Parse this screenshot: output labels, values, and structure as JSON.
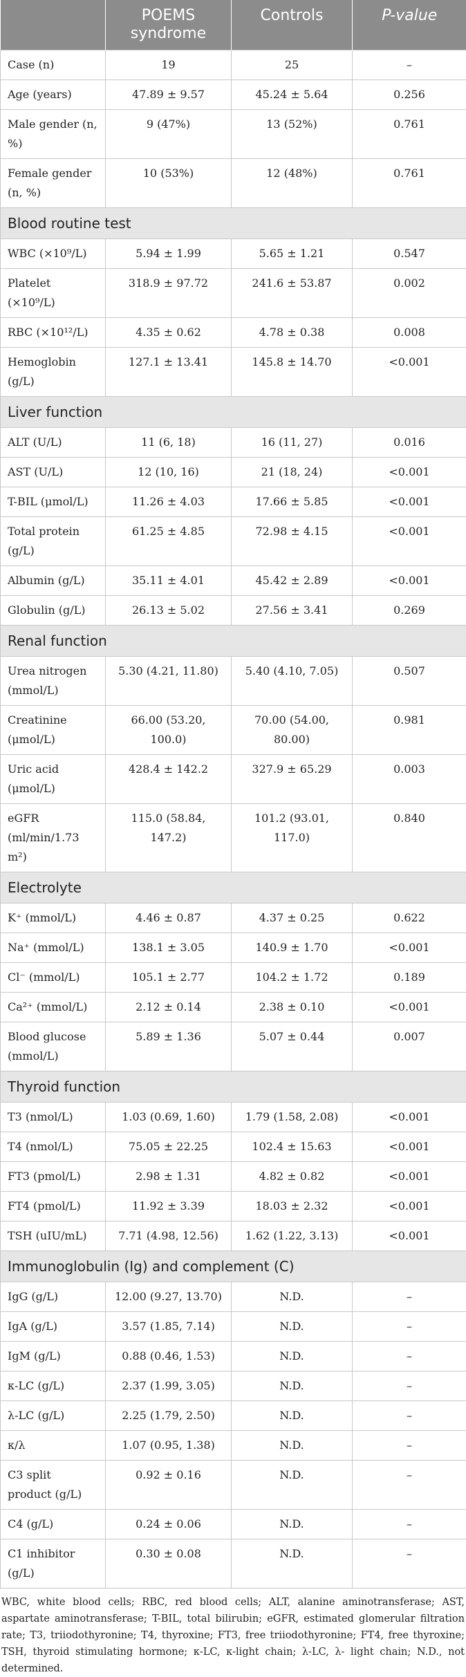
{
  "table": {
    "headers": {
      "col1": "",
      "col2": "POEMS syndrome",
      "col3": "Controls",
      "col4": "P-value"
    },
    "rows": [
      {
        "type": "data",
        "label": "Case (n)",
        "poems": "19",
        "controls": "25",
        "p": "–"
      },
      {
        "type": "data",
        "label": "Age (years)",
        "poems": "47.89 ± 9.57",
        "controls": "45.24 ± 5.64",
        "p": "0.256"
      },
      {
        "type": "data",
        "label": "Male gender (n, %)",
        "poems": "9 (47%)",
        "controls": "13 (52%)",
        "p": "0.761"
      },
      {
        "type": "data",
        "label": "Female gender (n, %)",
        "poems": "10 (53%)",
        "controls": "12 (48%)",
        "p": "0.761"
      },
      {
        "type": "section",
        "label": "Blood routine test"
      },
      {
        "type": "data",
        "label": "WBC (×10⁹/L)",
        "poems": "5.94 ± 1.99",
        "controls": "5.65 ± 1.21",
        "p": "0.547"
      },
      {
        "type": "data",
        "label": "Platelet (×10⁹/L)",
        "poems": "318.9 ± 97.72",
        "controls": "241.6 ± 53.87",
        "p": "0.002"
      },
      {
        "type": "data",
        "label": "RBC (×10¹²/L)",
        "poems": "4.35 ± 0.62",
        "controls": "4.78 ± 0.38",
        "p": "0.008"
      },
      {
        "type": "data",
        "label": "Hemoglobin (g/L)",
        "poems": "127.1 ± 13.41",
        "controls": "145.8 ± 14.70",
        "p": "<0.001"
      },
      {
        "type": "section",
        "label": "Liver function"
      },
      {
        "type": "data",
        "label": "ALT (U/L)",
        "poems": "11 (6, 18)",
        "controls": "16 (11, 27)",
        "p": "0.016"
      },
      {
        "type": "data",
        "label": "AST (U/L)",
        "poems": "12 (10, 16)",
        "controls": "21 (18, 24)",
        "p": "<0.001"
      },
      {
        "type": "data",
        "label": "T-BIL (μmol/L)",
        "poems": "11.26 ± 4.03",
        "controls": "17.66 ± 5.85",
        "p": "<0.001"
      },
      {
        "type": "data",
        "label": "Total protein (g/L)",
        "poems": "61.25 ± 4.85",
        "controls": "72.98 ± 4.15",
        "p": "<0.001"
      },
      {
        "type": "data",
        "label": "Albumin (g/L)",
        "poems": "35.11 ± 4.01",
        "controls": "45.42 ± 2.89",
        "p": "<0.001"
      },
      {
        "type": "data",
        "label": "Globulin (g/L)",
        "poems": "26.13 ± 5.02",
        "controls": "27.56 ± 3.41",
        "p": "0.269"
      },
      {
        "type": "section",
        "label": "Renal function"
      },
      {
        "type": "data",
        "label": "Urea nitrogen (mmol/L)",
        "poems": "5.30 (4.21, 11.80)",
        "controls": "5.40 (4.10, 7.05)",
        "p": "0.507"
      },
      {
        "type": "data",
        "label": "Creatinine (μmol/L)",
        "poems": "66.00 (53.20, 100.0)",
        "controls": "70.00 (54.00, 80.00)",
        "p": "0.981"
      },
      {
        "type": "data",
        "label": "Uric acid (μmol/L)",
        "poems": "428.4 ± 142.2",
        "controls": "327.9 ± 65.29",
        "p": "0.003"
      },
      {
        "type": "data",
        "label": "eGFR (ml/min/1.73 m²)",
        "poems": "115.0 (58.84, 147.2)",
        "controls": "101.2 (93.01, 117.0)",
        "p": "0.840"
      },
      {
        "type": "section",
        "label": "Electrolyte"
      },
      {
        "type": "data",
        "label": "K⁺ (mmol/L)",
        "poems": "4.46 ± 0.87",
        "controls": "4.37 ± 0.25",
        "p": "0.622"
      },
      {
        "type": "data",
        "label": "Na⁺ (mmol/L)",
        "poems": "138.1 ± 3.05",
        "controls": "140.9 ± 1.70",
        "p": "<0.001"
      },
      {
        "type": "data",
        "label": "Cl⁻ (mmol/L)",
        "poems": "105.1 ± 2.77",
        "controls": "104.2 ± 1.72",
        "p": "0.189"
      },
      {
        "type": "data",
        "label": "Ca²⁺ (mmol/L)",
        "poems": "2.12 ± 0.14",
        "controls": "2.38 ± 0.10",
        "p": "<0.001"
      },
      {
        "type": "data",
        "label": "Blood glucose (mmol/L)",
        "poems": "5.89 ± 1.36",
        "controls": "5.07 ± 0.44",
        "p": "0.007"
      },
      {
        "type": "section",
        "label": "Thyroid function"
      },
      {
        "type": "data",
        "label": "T3 (nmol/L)",
        "poems": "1.03 (0.69, 1.60)",
        "controls": "1.79 (1.58, 2.08)",
        "p": "<0.001"
      },
      {
        "type": "data",
        "label": "T4 (nmol/L)",
        "poems": "75.05 ± 22.25",
        "controls": "102.4 ± 15.63",
        "p": "<0.001"
      },
      {
        "type": "data",
        "label": "FT3 (pmol/L)",
        "poems": "2.98 ± 1.31",
        "controls": "4.82 ± 0.82",
        "p": "<0.001"
      },
      {
        "type": "data",
        "label": "FT4 (pmol/L)",
        "poems": "11.92 ± 3.39",
        "controls": "18.03 ± 2.32",
        "p": "<0.001"
      },
      {
        "type": "data",
        "label": "TSH (uIU/mL)",
        "poems": "7.71 (4.98, 12.56)",
        "controls": "1.62 (1.22, 3.13)",
        "p": "<0.001"
      },
      {
        "type": "section",
        "label": "Immunoglobulin (Ig) and complement (C)"
      },
      {
        "type": "data",
        "label": "IgG (g/L)",
        "poems": "12.00 (9.27, 13.70)",
        "controls": "N.D.",
        "p": "–"
      },
      {
        "type": "data",
        "label": "IgA (g/L)",
        "poems": "3.57 (1.85, 7.14)",
        "controls": "N.D.",
        "p": "–"
      },
      {
        "type": "data",
        "label": "IgM (g/L)",
        "poems": "0.88 (0.46, 1.53)",
        "controls": "N.D.",
        "p": "–"
      },
      {
        "type": "data",
        "label": "κ-LC (g/L)",
        "poems": "2.37 (1.99, 3.05)",
        "controls": "N.D.",
        "p": "–"
      },
      {
        "type": "data",
        "label": "λ-LC (g/L)",
        "poems": "2.25 (1.79, 2.50)",
        "controls": "N.D.",
        "p": "–"
      },
      {
        "type": "data",
        "label": "κ/λ",
        "poems": "1.07 (0.95, 1.38)",
        "controls": "N.D.",
        "p": "–"
      },
      {
        "type": "data",
        "label": "C3 split product (g/L)",
        "poems": "0.92 ± 0.16",
        "controls": "N.D.",
        "p": "–"
      },
      {
        "type": "data",
        "label": "C4 (g/L)",
        "poems": "0.24 ± 0.06",
        "controls": "N.D.",
        "p": "–"
      },
      {
        "type": "data",
        "label": "C1 inhibitor (g/L)",
        "poems": "0.30 ± 0.08",
        "controls": "N.D.",
        "p": "–"
      }
    ]
  },
  "footnote": "WBC, white blood cells; RBC, red blood cells; ALT, alanine aminotransferase; AST, aspartate aminotransferase; T-BIL, total bilirubin; eGFR, estimated glomerular filtration rate; T3, triiodothyronine; T4, thyroxine; FT3, free triiodothyronine; FT4, free thyroxine; TSH, thyroid stimulating hormone; κ-LC, κ-light chain; λ-LC, λ- light chain; N.D., not determined.",
  "colors": {
    "header_bg": "#8c8c8c",
    "section_bg": "#e6e6e6",
    "border": "#c8c8c8"
  }
}
